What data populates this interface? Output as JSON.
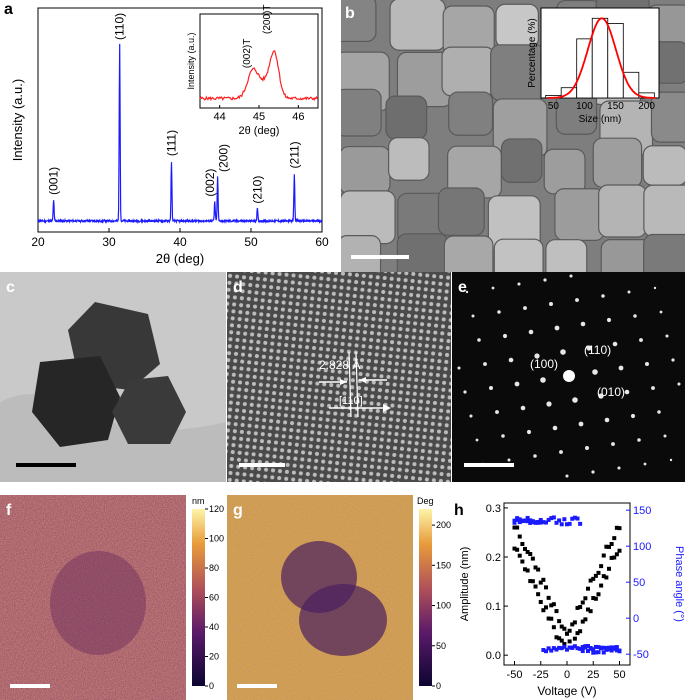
{
  "panel_labels": {
    "a": "a",
    "b": "b",
    "c": "c",
    "d": "d",
    "e": "e",
    "f": "f",
    "g": "g",
    "h": "h"
  },
  "colors": {
    "xrd": "#1a1aff",
    "inset_xrd": "#ff2020",
    "fit": "#ff0000",
    "amplitude": "#000000",
    "phase": "#1a1aff"
  },
  "chart_data": [
    {
      "id": "a",
      "type": "line",
      "xlabel": "2θ (deg)",
      "ylabel": "Intensity (a.u.)",
      "xlim": [
        20,
        60
      ],
      "xticks": [
        20,
        30,
        40,
        50,
        60
      ],
      "peaks": [
        {
          "label": "(001)",
          "x": 22.2,
          "h": 0.12
        },
        {
          "label": "(110)",
          "x": 31.5,
          "h": 1.0
        },
        {
          "label": "(111)",
          "x": 38.8,
          "h": 0.34
        },
        {
          "label": "(002)",
          "x": 44.9,
          "h": 0.11
        },
        {
          "label": "(200)",
          "x": 45.3,
          "h": 0.25
        },
        {
          "label": "(210)",
          "x": 50.9,
          "h": 0.07
        },
        {
          "label": "(211)",
          "x": 56.1,
          "h": 0.27
        }
      ]
    },
    {
      "id": "a-inset",
      "type": "line",
      "xlabel": "2θ (deg)",
      "ylabel": "Intensity (a.u.)",
      "xlim": [
        43.5,
        46.5
      ],
      "xticks": [
        44,
        45,
        46
      ],
      "peaks": [
        {
          "label": "(002)T",
          "x": 44.85,
          "h": 0.45
        },
        {
          "label": "(200)T",
          "x": 45.35,
          "h": 1.0
        }
      ]
    },
    {
      "id": "b-inset",
      "type": "bar",
      "xlabel": "Size (nm)",
      "ylabel": "Percentage (%)",
      "xticks": [
        50,
        100,
        150,
        200
      ],
      "categories": [
        50,
        75,
        100,
        125,
        150,
        175,
        200
      ],
      "values": [
        1,
        4,
        23,
        31,
        29,
        10,
        2
      ],
      "fit": "gaussian"
    },
    {
      "id": "f-colorbar",
      "type": "heatmap",
      "unit": "nm",
      "range": [
        0,
        120
      ],
      "ticks": [
        0,
        20,
        40,
        60,
        80,
        100,
        120
      ]
    },
    {
      "id": "g-colorbar",
      "type": "heatmap",
      "unit": "Deg",
      "range": [
        0,
        220
      ],
      "ticks": [
        0,
        50,
        100,
        150,
        200
      ]
    },
    {
      "id": "h",
      "type": "scatter",
      "xlabel": "Voltage (V)",
      "ylabel": "Amplitude (nm)",
      "ylabel_right": "Phase angle (°)",
      "xlim": [
        -60,
        60
      ],
      "xticks": [
        -50,
        -25,
        0,
        25,
        50
      ],
      "ylim": [
        -0.02,
        0.31
      ],
      "yticks": [
        0.0,
        0.1,
        0.2,
        0.3
      ],
      "ylim_right": [
        -65,
        160
      ],
      "yticks_right": [
        -50,
        0,
        50,
        100,
        150
      ]
    }
  ],
  "panel_d": {
    "d_spacing": "2.828 Å",
    "direction": "[110]"
  },
  "panel_e": {
    "spots": [
      "(100)",
      "(110)",
      "(010)"
    ]
  }
}
